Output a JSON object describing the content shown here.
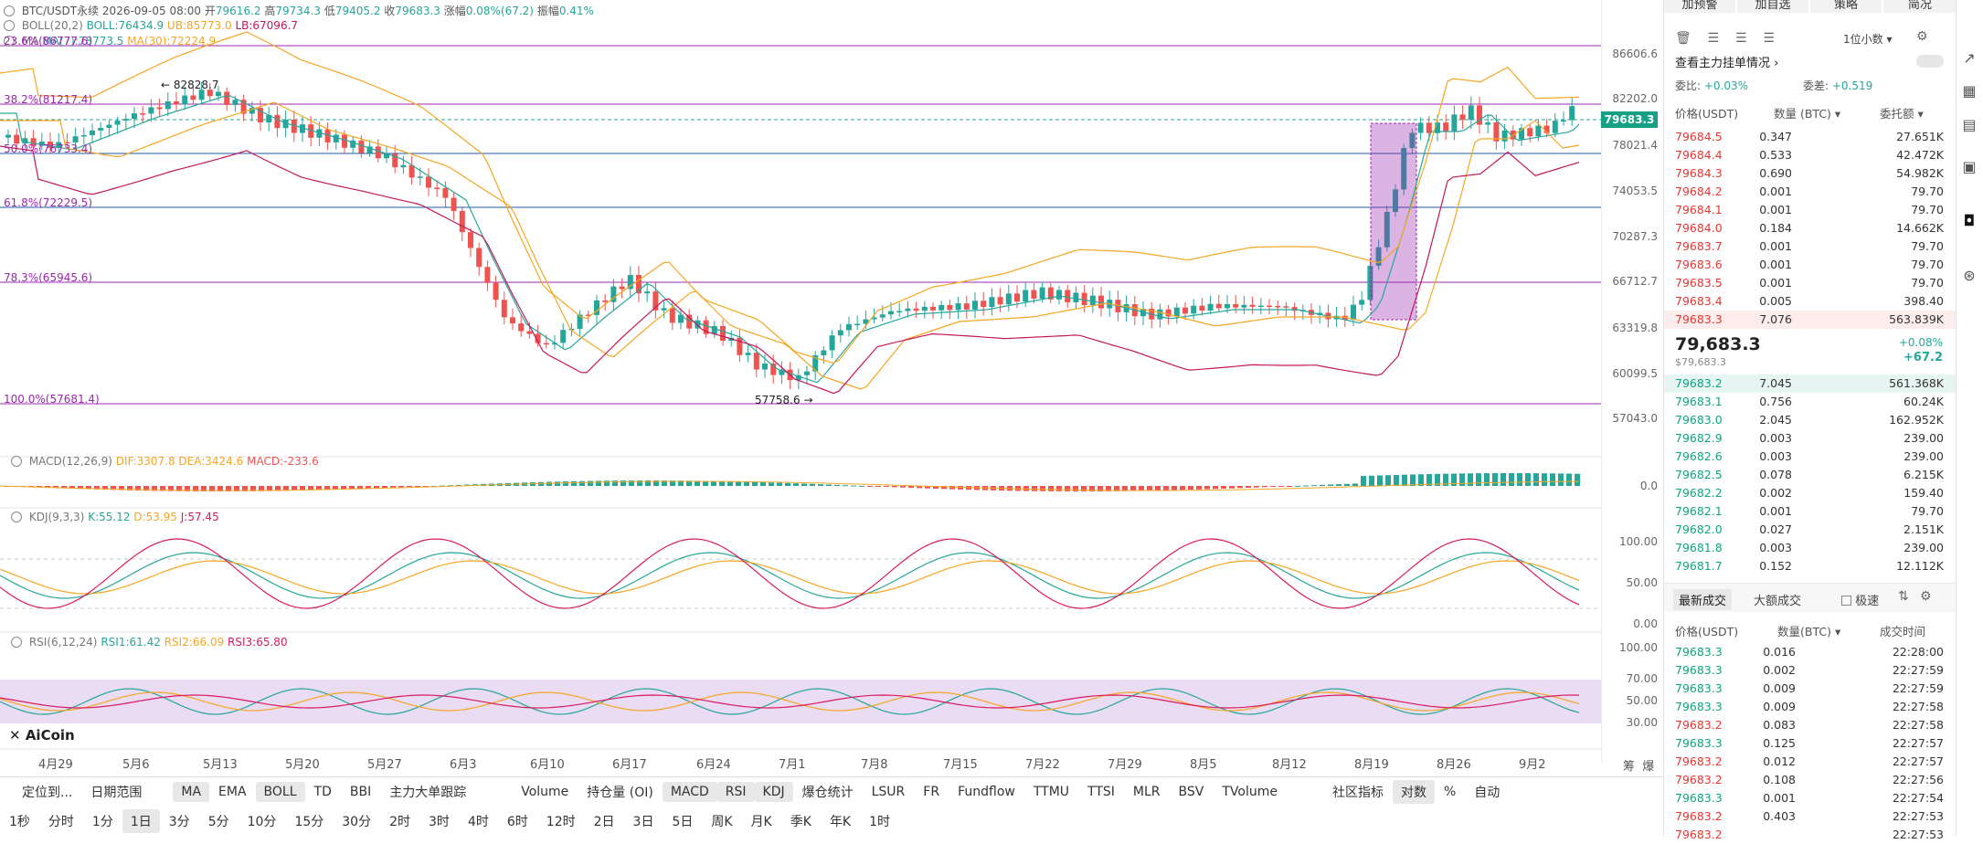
{
  "header": {
    "symbol": "BTC/USDT永续",
    "datetime": "2026-09-05 08:00",
    "open_label": "开",
    "open": "79616.2",
    "high_label": "高",
    "high": "79734.3",
    "low_label": "低",
    "low": "79405.2",
    "close_label": "收",
    "close": "79683.3",
    "chg_label": "涨幅",
    "chg": "0.08%(67.2)",
    "amp_label": "振幅",
    "amp": "0.41%"
  },
  "indicators": {
    "boll": {
      "name": "BOLL(20,2)",
      "boll": "BOLL:76434.9",
      "ub": "UB:85773.0",
      "lb": "LB:67096.7"
    },
    "ma": {
      "name": "MA",
      "ma7": "MA(7):78773.5",
      "ma30": "MA(30):72224.9"
    },
    "macd": {
      "name": "MACD(12,26,9)",
      "dif": "DIF:3307.8",
      "dea": "DEA:3424.6",
      "macd": "MACD:-233.6"
    },
    "kdj": {
      "name": "KDJ(9,3,3)",
      "k": "K:55.12",
      "d": "D:53.95",
      "j": "J:57.45"
    },
    "rsi": {
      "name": "RSI(6,12,24)",
      "rsi1": "RSI1:61.42",
      "rsi2": "RSI2:66.09",
      "rsi3": "RSI3:65.80"
    }
  },
  "fib_levels": [
    {
      "label": "23.6%(86777.6)"
    },
    {
      "label": "38.2%(81217.4)"
    },
    {
      "label": "50.0%(76733.4)"
    },
    {
      "label": "61.8%(72229.5)"
    },
    {
      "label": "78.3%(65945.6)"
    },
    {
      "label": "100.0%(57681.4)"
    }
  ],
  "price_axis": [
    "86606.6",
    "82202.0",
    "78021.4",
    "74053.5",
    "70287.3",
    "66712.7",
    "63319.8",
    "60099.5",
    "57043.0"
  ],
  "current_price_tag": "79683.3",
  "macd_axis": [
    "0.0"
  ],
  "kdj_axis": [
    "100.00",
    "50.00",
    "0.00"
  ],
  "rsi_axis": [
    "100.00",
    "70.00",
    "50.00",
    "30.00"
  ],
  "annotations": {
    "high": "82828.7",
    "low": "57758.6"
  },
  "watermark": "AiCoin",
  "x_labels": [
    "4月29",
    "5月6",
    "5月13",
    "5月20",
    "5月27",
    "6月3",
    "6月10",
    "6月17",
    "6月24",
    "7月1",
    "7月8",
    "7月15",
    "7月22",
    "7月29",
    "8月5",
    "8月12",
    "8月19",
    "8月26",
    "9月2"
  ],
  "axis_corner": [
    "筹",
    "爆"
  ],
  "toolbar1": {
    "items": [
      "定位到...",
      "日期范围",
      "MA",
      "EMA",
      "BOLL",
      "TD",
      "BBI",
      "主力大单跟踪",
      "Volume",
      "持仓量 (OI)",
      "MACD",
      "RSI",
      "KDJ",
      "爆仓统计",
      "LSUR",
      "FR",
      "Fundflow",
      "TTMU",
      "TTSI",
      "MLR",
      "BSV",
      "TVolume",
      "社区指标",
      "对数",
      "%",
      "自动"
    ]
  },
  "toolbar2": {
    "items": [
      "1秒",
      "分时",
      "1分",
      "1日",
      "3分",
      "5分",
      "10分",
      "15分",
      "30分",
      "2时",
      "3时",
      "4时",
      "6时",
      "12时",
      "2日",
      "3日",
      "5日",
      "周K",
      "月K",
      "季K",
      "年K",
      "1时"
    ]
  },
  "right_panel": {
    "top_buttons": [
      "加预警",
      "加自选",
      "策略",
      "简况"
    ],
    "precision": "1位小数",
    "depth_title": "查看主力挂单情况",
    "ratio_label": "委比:",
    "ratio_value": "+0.03%",
    "diff_label": "委差:",
    "diff_value": "+0.519",
    "col_price": "价格(USDT)",
    "col_qty": "数量 (BTC)",
    "col_total": "委托额",
    "asks": [
      [
        "79684.5",
        "0.347",
        "27.651K"
      ],
      [
        "79684.4",
        "0.533",
        "42.472K"
      ],
      [
        "79684.3",
        "0.690",
        "54.982K"
      ],
      [
        "79684.2",
        "0.001",
        "79.70"
      ],
      [
        "79684.1",
        "0.001",
        "79.70"
      ],
      [
        "79684.0",
        "0.184",
        "14.662K"
      ],
      [
        "79683.7",
        "0.001",
        "79.70"
      ],
      [
        "79683.6",
        "0.001",
        "79.70"
      ],
      [
        "79683.5",
        "0.001",
        "79.70"
      ],
      [
        "79683.4",
        "0.005",
        "398.40"
      ],
      [
        "79683.3",
        "7.076",
        "563.839K"
      ]
    ],
    "last_price": "79,683.3",
    "last_price_sub": "$79,683.3",
    "last_chg_pct": "+0.08%",
    "last_chg": "+67.2",
    "bids": [
      [
        "79683.2",
        "7.045",
        "561.368K"
      ],
      [
        "79683.1",
        "0.756",
        "60.24K"
      ],
      [
        "79683.0",
        "2.045",
        "162.952K"
      ],
      [
        "79682.9",
        "0.003",
        "239.00"
      ],
      [
        "79682.6",
        "0.003",
        "239.00"
      ],
      [
        "79682.5",
        "0.078",
        "6.215K"
      ],
      [
        "79682.2",
        "0.002",
        "159.40"
      ],
      [
        "79682.1",
        "0.001",
        "79.70"
      ],
      [
        "79682.0",
        "0.027",
        "2.151K"
      ],
      [
        "79681.8",
        "0.003",
        "239.00"
      ],
      [
        "79681.7",
        "0.152",
        "12.112K"
      ]
    ],
    "trades_tab1": "最新成交",
    "trades_tab2": "大额成交",
    "fast_label": "极速",
    "trades_col_price": "价格(USDT)",
    "trades_col_qty": "数量(BTC)",
    "trades_col_time": "成交时间",
    "trades": [
      [
        "79683.3",
        "0.016",
        "22:28:00",
        "g"
      ],
      [
        "79683.3",
        "0.002",
        "22:27:59",
        "g"
      ],
      [
        "79683.3",
        "0.009",
        "22:27:59",
        "g"
      ],
      [
        "79683.3",
        "0.009",
        "22:27:58",
        "g"
      ],
      [
        "79683.2",
        "0.083",
        "22:27:58",
        "r"
      ],
      [
        "79683.3",
        "0.125",
        "22:27:57",
        "g"
      ],
      [
        "79683.2",
        "0.012",
        "22:27:57",
        "r"
      ],
      [
        "79683.2",
        "0.108",
        "22:27:56",
        "r"
      ],
      [
        "79683.3",
        "0.001",
        "22:27:54",
        "g"
      ],
      [
        "79683.2",
        "0.403",
        "22:27:53",
        "r"
      ],
      [
        "79683.2",
        "",
        "22:27:53",
        "r"
      ]
    ]
  },
  "colors": {
    "up": "#26a69a",
    "down": "#ef5350",
    "fib": "#9c27b0",
    "accent": "#1e88e5"
  }
}
